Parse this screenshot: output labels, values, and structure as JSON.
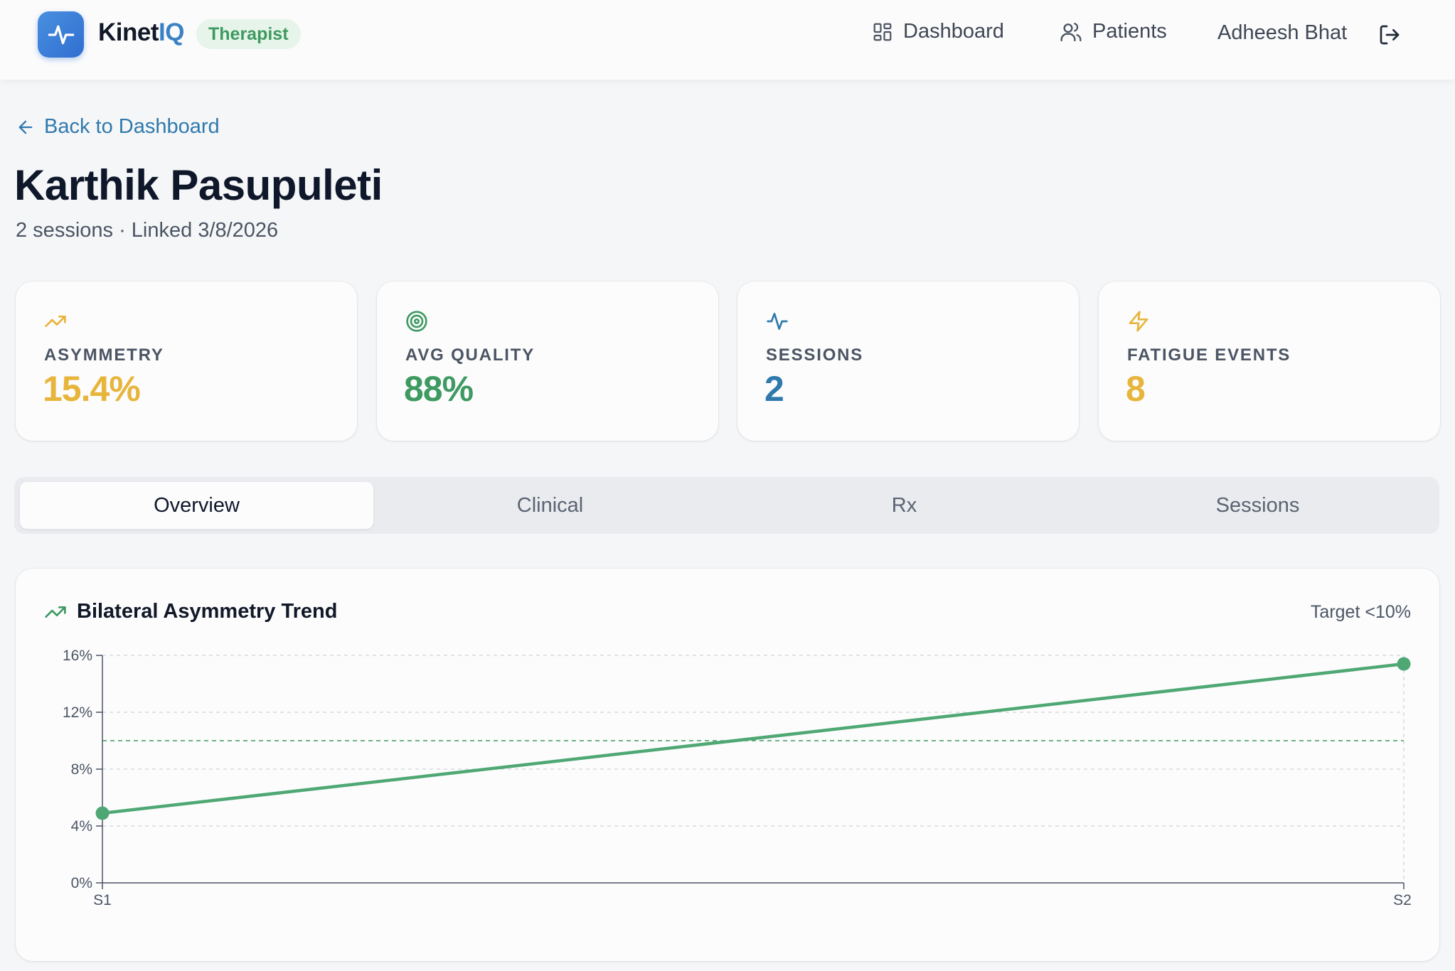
{
  "app": {
    "brand_prefix": "Kinet",
    "brand_suffix": "IQ",
    "role_badge": "Therapist"
  },
  "nav": {
    "dashboard": "Dashboard",
    "patients": "Patients",
    "user_name": "Adheesh Bhat"
  },
  "header": {
    "back_label": "Back to Dashboard",
    "patient_name": "Karthik Pasupuleti",
    "meta": "2 sessions · Linked 3/8/2026"
  },
  "stats": [
    {
      "label": "ASYMMETRY",
      "value": "15.4%",
      "icon": "trending-up-icon",
      "color": "#e7b53b"
    },
    {
      "label": "AVG QUALITY",
      "value": "88%",
      "icon": "target-icon",
      "color": "#3f9a62"
    },
    {
      "label": "SESSIONS",
      "value": "2",
      "icon": "activity-icon",
      "color": "#2f79ad"
    },
    {
      "label": "FATIGUE EVENTS",
      "value": "8",
      "icon": "lightning-icon",
      "color": "#e7b53b"
    }
  ],
  "tabs": [
    {
      "label": "Overview",
      "active": true
    },
    {
      "label": "Clinical",
      "active": false
    },
    {
      "label": "Rx",
      "active": false
    },
    {
      "label": "Sessions",
      "active": false
    }
  ],
  "colors": {
    "accent_blue": "#2f79ad",
    "success_green": "#3f9a62",
    "warning_amber": "#e7b53b",
    "line_green": "#4fa874"
  },
  "chart": {
    "title": "Bilateral Asymmetry Trend",
    "target_label": "Target <10%"
  },
  "chart_data": {
    "type": "line",
    "title": "Bilateral Asymmetry Trend",
    "categories": [
      "S1",
      "S2"
    ],
    "series": [
      {
        "values": [
          4.9,
          15.4
        ]
      }
    ],
    "target_line": 10,
    "ylim": [
      0,
      16
    ],
    "yticks": [
      0,
      4,
      8,
      12,
      16
    ],
    "ytick_labels": [
      "0%",
      "4%",
      "8%",
      "12%",
      "16%"
    ],
    "grid": true
  }
}
